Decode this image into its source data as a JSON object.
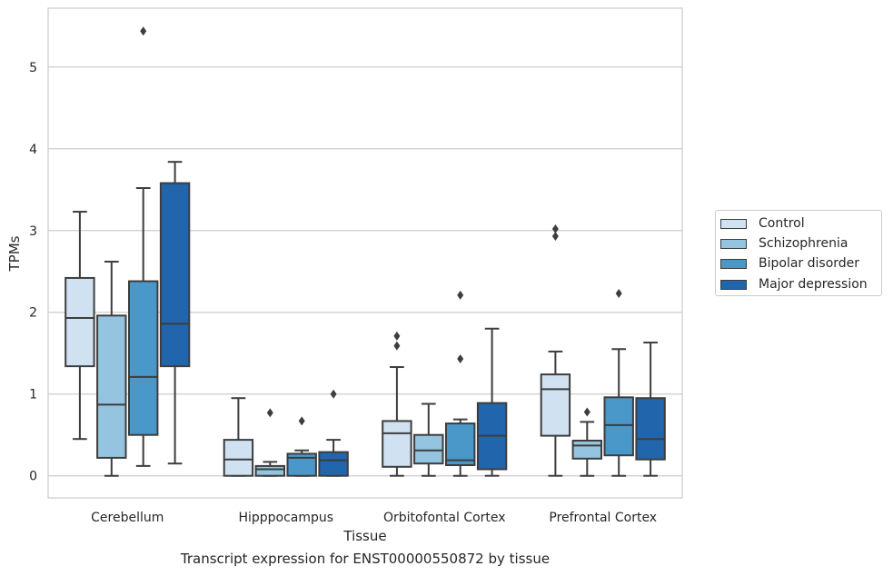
{
  "chart_data": {
    "type": "box",
    "title": "",
    "xlabel": "Tissue",
    "ylabel": "TPMs",
    "caption": "Transcript expression for ENST00000550872 by tissue",
    "ylim": [
      -0.27,
      5.72
    ],
    "yticks": [
      0,
      1,
      2,
      3,
      4,
      5
    ],
    "grid": "horizontal",
    "legend_position": "right",
    "categories": [
      "Cerebellum",
      "Hipppocampus",
      "Orbitofontal Cortex",
      "Prefrontal Cortex"
    ],
    "series": [
      {
        "name": "Control",
        "color": "#d0e1f2",
        "boxes": [
          {
            "whisker_low": 0.45,
            "q1": 1.34,
            "median": 1.93,
            "q3": 2.42,
            "whisker_high": 3.23,
            "outliers": []
          },
          {
            "whisker_low": 0.0,
            "q1": 0.0,
            "median": 0.2,
            "q3": 0.44,
            "whisker_high": 0.95,
            "outliers": []
          },
          {
            "whisker_low": 0.0,
            "q1": 0.11,
            "median": 0.52,
            "q3": 0.67,
            "whisker_high": 1.33,
            "outliers": [
              1.59,
              1.71
            ]
          },
          {
            "whisker_low": 0.0,
            "q1": 0.49,
            "median": 1.06,
            "q3": 1.24,
            "whisker_high": 1.52,
            "outliers": [
              2.93,
              3.02
            ]
          }
        ]
      },
      {
        "name": "Schizophrenia",
        "color": "#94c4df",
        "boxes": [
          {
            "whisker_low": 0.0,
            "q1": 0.22,
            "median": 0.87,
            "q3": 1.96,
            "whisker_high": 2.62,
            "outliers": []
          },
          {
            "whisker_low": 0.0,
            "q1": 0.0,
            "median": 0.08,
            "q3": 0.12,
            "whisker_high": 0.17,
            "outliers": [
              0.77
            ]
          },
          {
            "whisker_low": 0.0,
            "q1": 0.15,
            "median": 0.31,
            "q3": 0.5,
            "whisker_high": 0.88,
            "outliers": []
          },
          {
            "whisker_low": 0.0,
            "q1": 0.21,
            "median": 0.37,
            "q3": 0.43,
            "whisker_high": 0.66,
            "outliers": [
              0.78
            ]
          }
        ]
      },
      {
        "name": "Bipolar disorder",
        "color": "#4a98c9",
        "boxes": [
          {
            "whisker_low": 0.12,
            "q1": 0.5,
            "median": 1.21,
            "q3": 2.38,
            "whisker_high": 3.52,
            "outliers": [
              5.44
            ]
          },
          {
            "whisker_low": 0.0,
            "q1": 0.0,
            "median": 0.22,
            "q3": 0.27,
            "whisker_high": 0.31,
            "outliers": [
              0.67
            ]
          },
          {
            "whisker_low": 0.0,
            "q1": 0.13,
            "median": 0.19,
            "q3": 0.64,
            "whisker_high": 0.69,
            "outliers": [
              1.43,
              2.21
            ]
          },
          {
            "whisker_low": 0.0,
            "q1": 0.25,
            "median": 0.62,
            "q3": 0.96,
            "whisker_high": 1.55,
            "outliers": [
              2.23
            ]
          }
        ]
      },
      {
        "name": "Major depression",
        "color": "#2166ac",
        "boxes": [
          {
            "whisker_low": 0.15,
            "q1": 1.34,
            "median": 1.86,
            "q3": 3.58,
            "whisker_high": 3.84,
            "outliers": []
          },
          {
            "whisker_low": 0.0,
            "q1": 0.0,
            "median": 0.19,
            "q3": 0.29,
            "whisker_high": 0.44,
            "outliers": [
              1.0
            ]
          },
          {
            "whisker_low": 0.0,
            "q1": 0.08,
            "median": 0.49,
            "q3": 0.89,
            "whisker_high": 1.8,
            "outliers": []
          },
          {
            "whisker_low": 0.0,
            "q1": 0.2,
            "median": 0.45,
            "q3": 0.95,
            "whisker_high": 1.63,
            "outliers": []
          }
        ]
      }
    ]
  }
}
